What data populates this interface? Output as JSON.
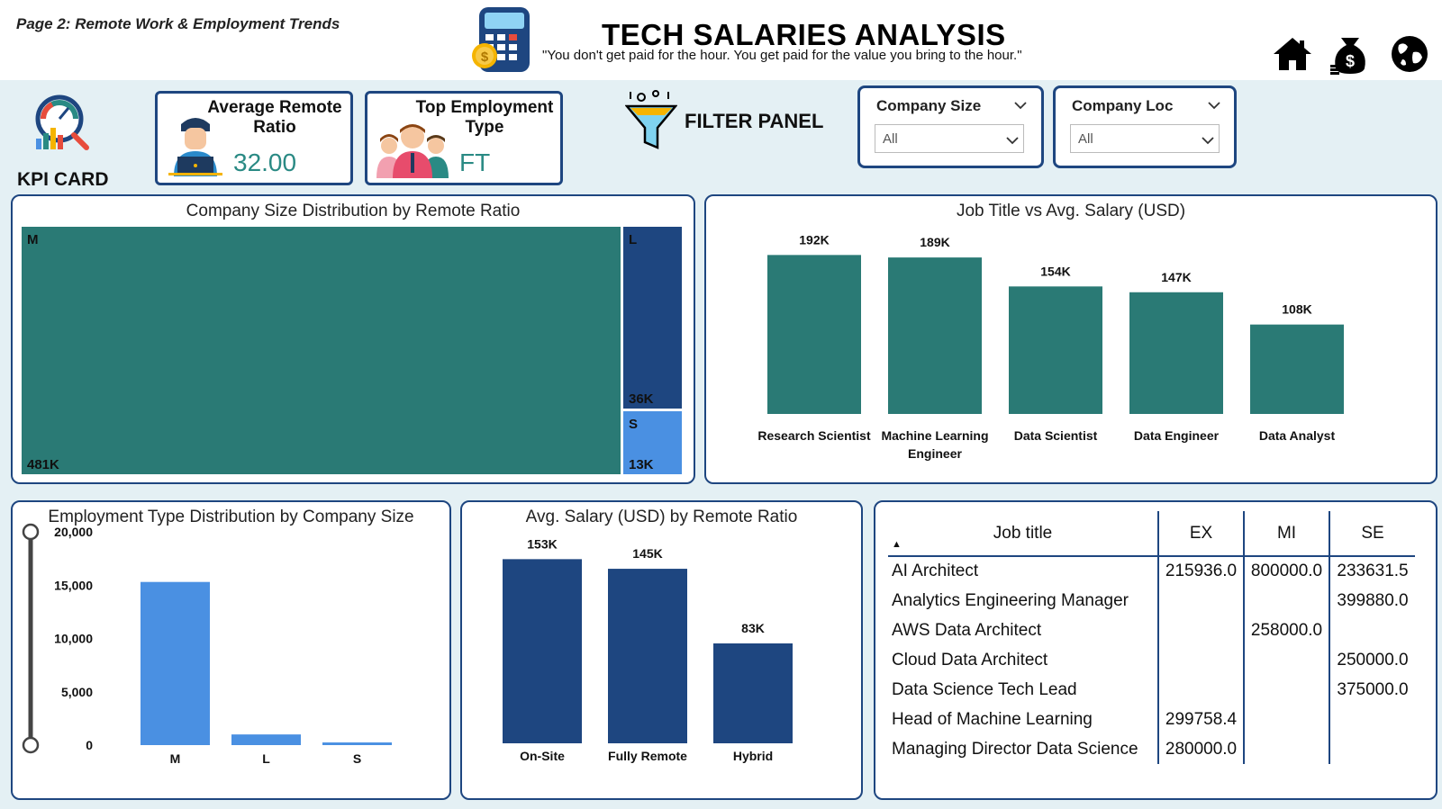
{
  "header": {
    "page_label": "Page 2: Remote Work & Employment Trends",
    "title": "TECH SALARIES ANALYSIS",
    "quote": "\"You don't get paid for the hour. You get paid for the value you bring to the hour.\"",
    "nav_icons": [
      "home-icon",
      "money-bag-icon",
      "globe-icon"
    ]
  },
  "kpi": {
    "section_label": "KPI CARD",
    "avg_remote_label": "Average Remote Ratio",
    "avg_remote_value": "32.00",
    "top_emp_label": "Top Employment Type",
    "top_emp_value": "FT"
  },
  "filter": {
    "label": "FILTER PANEL",
    "slicers": [
      {
        "title": "Company Size",
        "value": "All"
      },
      {
        "title": "Company Loc",
        "value": "All"
      }
    ]
  },
  "colors": {
    "teal": "#2a7a75",
    "navy": "#1e4680",
    "light_blue": "#4a90e2",
    "border": "#1e4680",
    "background": "#e4f0f4"
  },
  "treemap": {
    "title": "Company Size Distribution by Remote Ratio"
  },
  "job_chart": {
    "title": "Job Title vs Avg. Salary (USD)"
  },
  "emp_chart": {
    "title": "Employment Type Distribution by Company Size"
  },
  "remote_chart": {
    "title": "Avg. Salary (USD) by Remote Ratio"
  },
  "chart_data": [
    {
      "type": "treemap",
      "title": "Company Size Distribution by Remote Ratio",
      "categories": [
        "M",
        "L",
        "S"
      ],
      "values": [
        481000,
        36000,
        13000
      ],
      "labels": [
        "481K",
        "36K",
        "13K"
      ]
    },
    {
      "type": "bar",
      "title": "Job Title vs Avg. Salary (USD)",
      "categories": [
        "Research Scientist",
        "Machine Learning Engineer",
        "Data Scientist",
        "Data Engineer",
        "Data Analyst"
      ],
      "values": [
        192000,
        189000,
        154000,
        147000,
        108000
      ],
      "labels": [
        "192K",
        "189K",
        "154K",
        "147K",
        "108K"
      ],
      "ylim": [
        0,
        200000
      ]
    },
    {
      "type": "bar",
      "title": "Employment Type Distribution by Company Size",
      "categories": [
        "M",
        "L",
        "S"
      ],
      "values": [
        15300,
        1000,
        250
      ],
      "ylim": [
        0,
        20000
      ],
      "yticks": [
        "0",
        "5,000",
        "10,000",
        "15,000",
        "20,000"
      ]
    },
    {
      "type": "bar",
      "title": "Avg. Salary (USD) by Remote Ratio",
      "categories": [
        "On-Site",
        "Fully Remote",
        "Hybrid"
      ],
      "values": [
        153000,
        145000,
        83000
      ],
      "labels": [
        "153K",
        "145K",
        "83K"
      ],
      "ylim": [
        0,
        160000
      ]
    }
  ],
  "table": {
    "headers": [
      "Job title",
      "EX",
      "MI",
      "SE"
    ],
    "rows": [
      [
        "AI Architect",
        "215936.0",
        "800000.0",
        "233631.5"
      ],
      [
        "Analytics Engineering Manager",
        "",
        "",
        "399880.0"
      ],
      [
        "AWS Data Architect",
        "",
        "258000.0",
        ""
      ],
      [
        "Cloud Data Architect",
        "",
        "",
        "250000.0"
      ],
      [
        "Data Science Tech Lead",
        "",
        "",
        "375000.0"
      ],
      [
        "Head of Machine Learning",
        "299758.4",
        "",
        ""
      ],
      [
        "Managing Director Data Science",
        "280000.0",
        "",
        ""
      ]
    ]
  }
}
